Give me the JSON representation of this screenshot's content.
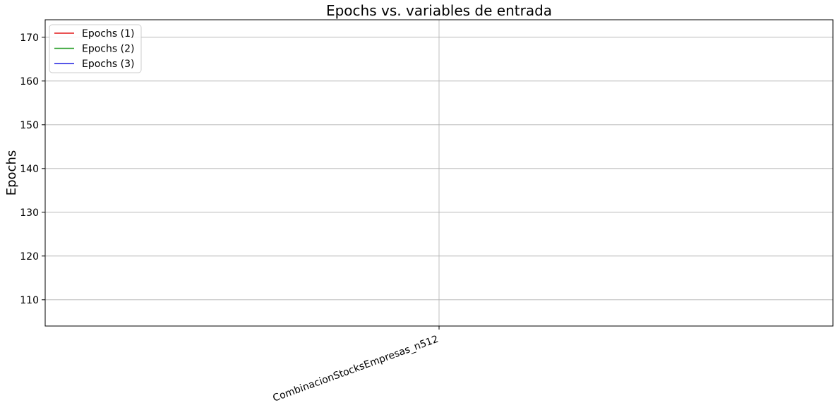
{
  "chart_data": {
    "type": "line",
    "title": "Epochs vs. variables de entrada",
    "xlabel": "",
    "ylabel": "Epochs",
    "categories": [
      "CombinacionStocksEmpresas_n512"
    ],
    "ylim": [
      104,
      174
    ],
    "yticks": [
      110,
      120,
      130,
      140,
      150,
      160,
      170
    ],
    "grid": true,
    "legend_position": "top-left",
    "series": [
      {
        "name": "Epochs (1)",
        "color": "#e41a1c",
        "values": [
          null
        ]
      },
      {
        "name": "Epochs (2)",
        "color": "#2ca02c",
        "values": [
          null
        ]
      },
      {
        "name": "Epochs (3)",
        "color": "#1f1fe0",
        "values": [
          null
        ]
      }
    ]
  }
}
